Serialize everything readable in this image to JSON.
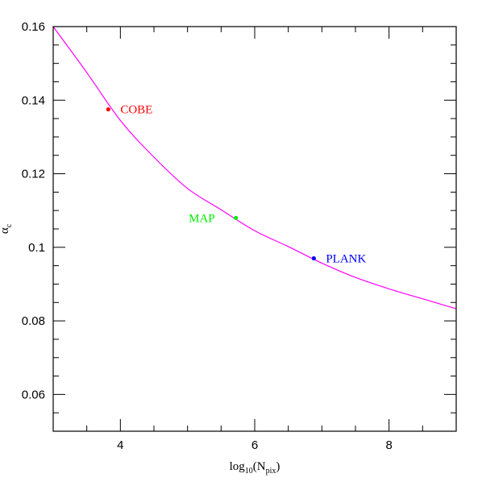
{
  "chart_data": {
    "type": "line",
    "title": "",
    "xlabel": {
      "base": "log",
      "sub1": "10",
      "mid": "(N",
      "sub2": "pix",
      "end": ")"
    },
    "ylabel": {
      "base": "α",
      "sub": "c"
    },
    "xlim": [
      3,
      9
    ],
    "ylim": [
      0.05,
      0.16
    ],
    "x_ticks": [
      4,
      6,
      8
    ],
    "x_tick_labels": [
      "4",
      "6",
      "8"
    ],
    "y_ticks": [
      0.06,
      0.08,
      0.1,
      0.12,
      0.14,
      0.16
    ],
    "y_tick_labels": [
      "0.06",
      "0.08",
      "0.1",
      "0.12",
      "0.14",
      "0.16"
    ],
    "x_minor_step": 0.5,
    "y_minor_step": 0.005,
    "curve": {
      "color": "#ff00ff",
      "x": [
        3.0,
        3.5,
        4.0,
        4.5,
        5.0,
        5.5,
        6.0,
        6.5,
        7.0,
        7.5,
        8.0,
        8.5,
        9.0
      ],
      "y": [
        0.16,
        0.1475,
        0.1345,
        0.1245,
        0.116,
        0.1102,
        0.1045,
        0.1002,
        0.0957,
        0.0918,
        0.0887,
        0.086,
        0.0833
      ]
    },
    "points": [
      {
        "label": "COBE",
        "x": 3.82,
        "y": 0.1375,
        "color": "#ff0000",
        "label_side": "right"
      },
      {
        "label": "MAP",
        "x": 5.72,
        "y": 0.108,
        "color": "#00ee00",
        "label_side": "left"
      },
      {
        "label": "PLANK",
        "x": 6.88,
        "y": 0.097,
        "color": "#0000ff",
        "label_side": "right"
      }
    ]
  }
}
